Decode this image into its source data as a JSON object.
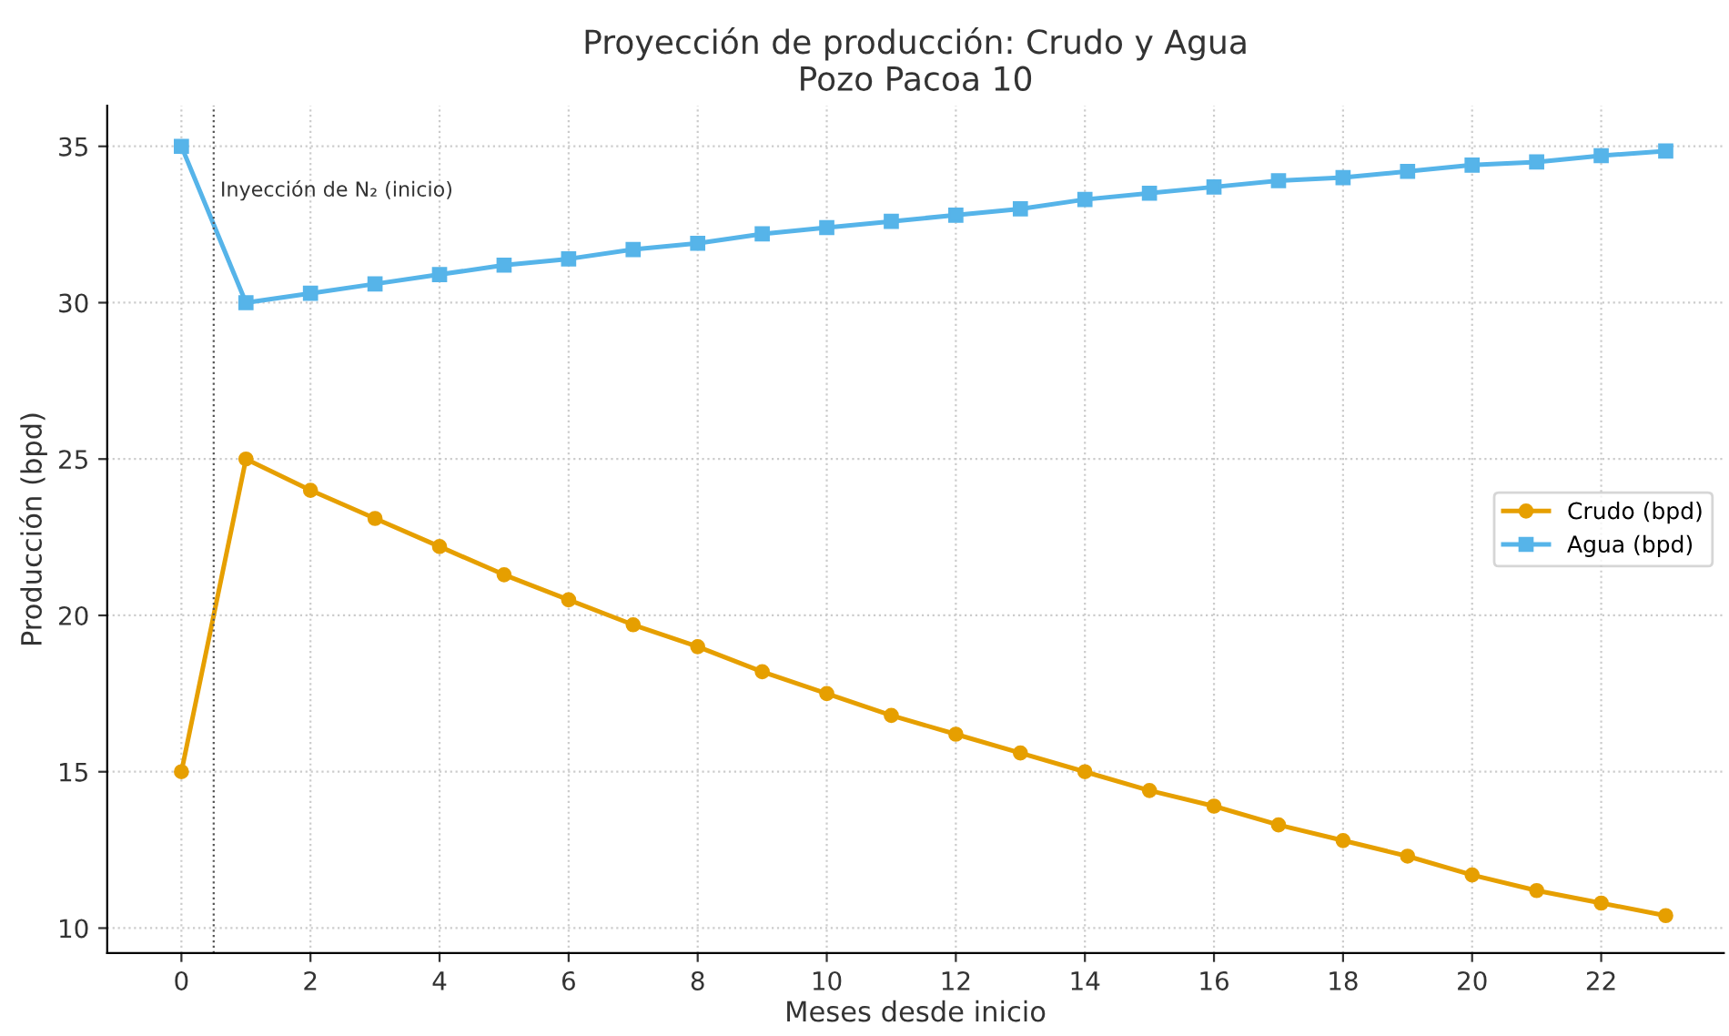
{
  "chart_data": {
    "type": "line",
    "title": "Proyección de producción: Crudo y Agua\nPozo Pacoa 10",
    "xlabel": "Meses desde inicio",
    "ylabel": "Producción (bpd)",
    "x": [
      0,
      1,
      2,
      3,
      4,
      5,
      6,
      7,
      8,
      9,
      10,
      11,
      12,
      13,
      14,
      15,
      16,
      17,
      18,
      19,
      20,
      21,
      22,
      23
    ],
    "series": [
      {
        "name": "Crudo (bpd)",
        "color": "#e69f00",
        "marker": "circle",
        "values": [
          15,
          25,
          24.0,
          23.1,
          22.2,
          21.3,
          20.5,
          19.7,
          19.0,
          18.2,
          17.5,
          16.8,
          16.2,
          15.6,
          15.0,
          14.4,
          13.9,
          13.3,
          12.8,
          12.3,
          11.7,
          11.2,
          10.8,
          10.4
        ]
      },
      {
        "name": "Agua (bpd)",
        "color": "#56b4e9",
        "marker": "square",
        "values": [
          35,
          30,
          30.3,
          30.6,
          30.9,
          31.2,
          31.4,
          31.7,
          31.9,
          32.2,
          32.4,
          32.6,
          32.8,
          33.0,
          33.3,
          33.5,
          33.7,
          33.9,
          34.0,
          34.2,
          34.4,
          34.5,
          34.7,
          34.85
        ]
      }
    ],
    "ref_lines": [
      {
        "axis": "x",
        "value": 0.5,
        "label": "Inyección de N₂ (inicio)",
        "color": "#555555",
        "line_style": "dotted"
      }
    ],
    "xlim": [
      -1.15,
      23.9
    ],
    "xticks": [
      0,
      2,
      4,
      6,
      8,
      10,
      12,
      14,
      16,
      18,
      20,
      22
    ],
    "ylim": [
      9.2,
      36.3
    ],
    "yticks": [
      10,
      15,
      20,
      25,
      30,
      35
    ],
    "grid": true,
    "legend": "center right",
    "line_style": "solid"
  }
}
